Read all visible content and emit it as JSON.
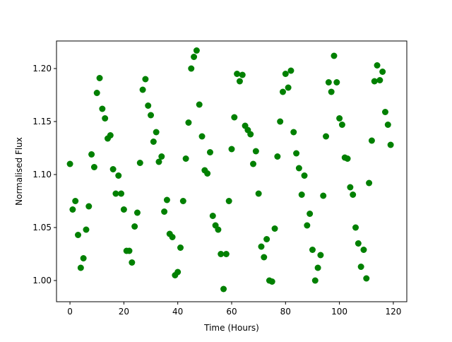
{
  "chart_data": {
    "type": "scatter",
    "xlabel": "Time (Hours)",
    "ylabel": "Normalised Flux",
    "xlim": [
      -5,
      125
    ],
    "ylim": [
      0.98,
      1.226
    ],
    "xticks": [
      0,
      20,
      40,
      60,
      80,
      100,
      120
    ],
    "yticks": [
      1.0,
      1.05,
      1.1,
      1.15,
      1.2
    ],
    "xtick_labels": [
      "0",
      "20",
      "40",
      "60",
      "80",
      "100",
      "120"
    ],
    "ytick_labels": [
      "1.00",
      "1.05",
      "1.10",
      "1.15",
      "1.20"
    ],
    "grid": false,
    "series": [
      {
        "color": "#008000",
        "marker": "circle",
        "x": [
          0,
          1,
          2,
          3,
          4,
          5,
          6,
          7,
          8,
          9,
          10,
          11,
          12,
          13,
          14,
          15,
          16,
          17,
          18,
          19,
          20,
          21,
          22,
          23,
          24,
          25,
          26,
          27,
          28,
          29,
          30,
          31,
          32,
          33,
          34,
          35,
          36,
          37,
          38,
          39,
          40,
          41,
          42,
          43,
          44,
          45,
          46,
          47,
          48,
          49,
          50,
          51,
          52,
          53,
          54,
          55,
          56,
          57,
          58,
          59,
          60,
          61,
          62,
          63,
          64,
          65,
          66,
          67,
          68,
          69,
          70,
          71,
          72,
          73,
          74,
          75,
          76,
          77,
          78,
          79,
          80,
          81,
          82,
          83,
          84,
          85,
          86,
          87,
          88,
          89,
          90,
          91,
          92,
          93,
          94,
          95,
          96,
          97,
          98,
          99,
          100,
          101,
          102,
          103,
          104,
          105,
          106,
          107,
          108,
          109,
          110,
          111,
          112,
          113,
          114,
          115,
          116,
          117,
          118,
          119
        ],
        "y": [
          1.11,
          1.067,
          1.075,
          1.043,
          1.012,
          1.021,
          1.048,
          1.07,
          1.119,
          1.107,
          1.177,
          1.191,
          1.162,
          1.153,
          1.134,
          1.137,
          1.105,
          1.082,
          1.099,
          1.082,
          1.067,
          1.028,
          1.028,
          1.017,
          1.051,
          1.064,
          1.111,
          1.18,
          1.19,
          1.165,
          1.156,
          1.131,
          1.14,
          1.112,
          1.117,
          1.065,
          1.076,
          1.044,
          1.041,
          1.005,
          1.008,
          1.031,
          1.075,
          1.115,
          1.149,
          1.2,
          1.211,
          1.217,
          1.166,
          1.136,
          1.104,
          1.101,
          1.121,
          1.061,
          1.052,
          1.048,
          1.025,
          0.992,
          1.025,
          1.075,
          1.124,
          1.154,
          1.195,
          1.188,
          1.194,
          1.146,
          1.142,
          1.138,
          1.11,
          1.122,
          1.082,
          1.032,
          1.022,
          1.039,
          1.0,
          0.999,
          1.049,
          1.117,
          1.15,
          1.178,
          1.195,
          1.182,
          1.198,
          1.14,
          1.12,
          1.106,
          1.081,
          1.099,
          1.052,
          1.063,
          1.029,
          1.0,
          1.012,
          1.024,
          1.08,
          1.136,
          1.187,
          1.178,
          1.212,
          1.187,
          1.153,
          1.147,
          1.116,
          1.115,
          1.088,
          1.081,
          1.05,
          1.035,
          1.013,
          1.029,
          1.002,
          1.092,
          1.132,
          1.188,
          1.203,
          1.189,
          1.197,
          1.159,
          1.147,
          1.128
        ]
      }
    ]
  }
}
